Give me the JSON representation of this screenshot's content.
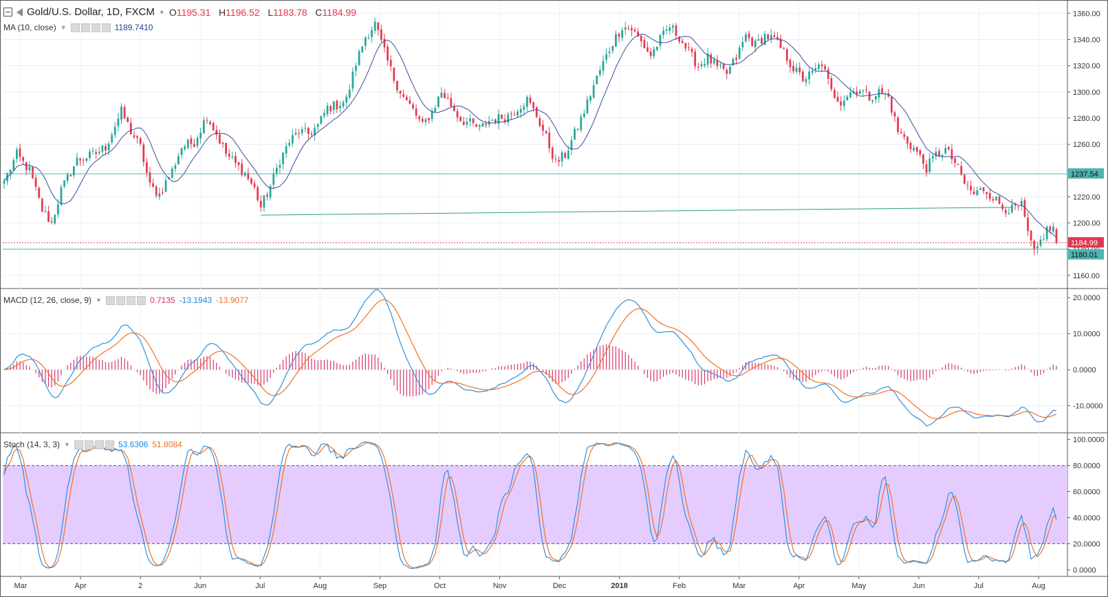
{
  "header": {
    "symbol_title": "Gold/U.S. Dollar, 1D, FXCM",
    "open_label": "O",
    "open": "1195.31",
    "high_label": "H",
    "high": "1196.52",
    "low_label": "L",
    "low": "1183.78",
    "close_label": "C",
    "close": "1184.99"
  },
  "indicators": {
    "ma": {
      "label": "MA (10, close)",
      "value": "1189.7410"
    },
    "macd": {
      "label": "MACD (12, 26, close, 9)",
      "hist": "0.7135",
      "macd": "-13.1943",
      "signal": "-13.9077"
    },
    "stoch": {
      "label": "Stoch (14, 3, 3)",
      "k": "53.6306",
      "d": "51.8084"
    }
  },
  "chart_data": [
    {
      "type": "candlestick",
      "panel": "price",
      "title": "Gold/U.S. Dollar, 1D, FXCM",
      "x_labels": [
        "Mar",
        "Apr",
        "2",
        "Jun",
        "Jul",
        "Aug",
        "Sep",
        "Oct",
        "Nov",
        "Dec",
        "2018",
        "Feb",
        "Mar",
        "Apr",
        "May",
        "Jun",
        "Jul",
        "Aug"
      ],
      "y_ticks": [
        "1360.00",
        "1340.00",
        "1320.00",
        "1300.00",
        "1280.00",
        "1260.00",
        "1240.00",
        "1220.00",
        "1200.00",
        "1180.00",
        "1160.00"
      ],
      "ylim": [
        1150,
        1367
      ],
      "close_anchors": [
        [
          0,
          1232
        ],
        [
          4,
          1252
        ],
        [
          8,
          1240
        ],
        [
          12,
          1210
        ],
        [
          15,
          1200
        ],
        [
          18,
          1225
        ],
        [
          23,
          1248
        ],
        [
          28,
          1252
        ],
        [
          32,
          1258
        ],
        [
          37,
          1285
        ],
        [
          40,
          1270
        ],
        [
          43,
          1258
        ],
        [
          46,
          1228
        ],
        [
          49,
          1222
        ],
        [
          53,
          1240
        ],
        [
          56,
          1258
        ],
        [
          60,
          1262
        ],
        [
          64,
          1282
        ],
        [
          67,
          1268
        ],
        [
          70,
          1253
        ],
        [
          73,
          1245
        ],
        [
          76,
          1238
        ],
        [
          79,
          1226
        ],
        [
          81,
          1212
        ],
        [
          84,
          1228
        ],
        [
          87,
          1248
        ],
        [
          90,
          1262
        ],
        [
          93,
          1270
        ],
        [
          96,
          1268
        ],
        [
          99,
          1274
        ],
        [
          102,
          1288
        ],
        [
          105,
          1290
        ],
        [
          108,
          1294
        ],
        [
          111,
          1322
        ],
        [
          114,
          1342
        ],
        [
          117,
          1352
        ],
        [
          120,
          1330
        ],
        [
          123,
          1310
        ],
        [
          126,
          1296
        ],
        [
          129,
          1286
        ],
        [
          132,
          1274
        ],
        [
          135,
          1285
        ],
        [
          138,
          1300
        ],
        [
          141,
          1290
        ],
        [
          144,
          1279
        ],
        [
          147,
          1276
        ],
        [
          150,
          1272
        ],
        [
          153,
          1278
        ],
        [
          156,
          1280
        ],
        [
          159,
          1282
        ],
        [
          162,
          1288
        ],
        [
          165,
          1294
        ],
        [
          168,
          1282
        ],
        [
          171,
          1265
        ],
        [
          174,
          1246
        ],
        [
          177,
          1252
        ],
        [
          180,
          1268
        ],
        [
          183,
          1285
        ],
        [
          186,
          1305
        ],
        [
          189,
          1322
        ],
        [
          192,
          1338
        ],
        [
          195,
          1350
        ],
        [
          198,
          1348
        ],
        [
          201,
          1338
        ],
        [
          204,
          1328
        ],
        [
          207,
          1340
        ],
        [
          210,
          1350
        ],
        [
          213,
          1342
        ],
        [
          216,
          1330
        ],
        [
          219,
          1320
        ],
        [
          222,
          1326
        ],
        [
          225,
          1318
        ],
        [
          228,
          1314
        ],
        [
          231,
          1326
        ],
        [
          234,
          1343
        ],
        [
          237,
          1336
        ],
        [
          240,
          1343
        ],
        [
          243,
          1340
        ],
        [
          246,
          1330
        ],
        [
          249,
          1318
        ],
        [
          252,
          1310
        ],
        [
          255,
          1314
        ],
        [
          258,
          1322
        ],
        [
          261,
          1300
        ],
        [
          264,
          1293
        ],
        [
          267,
          1300
        ],
        [
          270,
          1302
        ],
        [
          273,
          1296
        ],
        [
          276,
          1300
        ],
        [
          279,
          1296
        ],
        [
          282,
          1270
        ],
        [
          285,
          1262
        ],
        [
          288,
          1254
        ],
        [
          291,
          1242
        ],
        [
          294,
          1252
        ],
        [
          297,
          1256
        ],
        [
          300,
          1246
        ],
        [
          303,
          1230
        ],
        [
          306,
          1222
        ],
        [
          309,
          1226
        ],
        [
          312,
          1220
        ],
        [
          315,
          1212
        ],
        [
          318,
          1210
        ],
        [
          321,
          1213
        ],
        [
          323,
          1192
        ],
        [
          325,
          1176
        ],
        [
          327,
          1186
        ],
        [
          329,
          1195
        ],
        [
          331,
          1196
        ],
        [
          332,
          1185
        ]
      ],
      "volatility": 5,
      "ma_period": 10,
      "levels": [
        {
          "name": "resistance",
          "value": 1237.54,
          "label": "1237.54",
          "color": "#4fb3b0"
        },
        {
          "name": "support",
          "value": 1180.01,
          "label": "1180.01",
          "color": "#4fb3b0"
        },
        {
          "name": "last-price",
          "value": 1184.99,
          "label": "1184.99",
          "color": "#e0364f"
        }
      ],
      "trendline": {
        "from": [
          81,
          1206
        ],
        "to": [
          318,
          1212
        ]
      },
      "colors": {
        "up": "#26a69a",
        "down": "#e5394f",
        "ma": "#3a4a9c"
      }
    },
    {
      "type": "line",
      "panel": "macd",
      "title": "MACD (12, 26, close, 9)",
      "y_ticks": [
        "20.0000",
        "10.0000",
        "0.0000",
        "-10.0000"
      ],
      "ylim": [
        -16,
        21
      ],
      "series": [
        {
          "name": "MACD",
          "color": "#2b8fe0"
        },
        {
          "name": "Signal",
          "color": "#f07020"
        },
        {
          "name": "Histogram",
          "color": "#d6336c"
        }
      ]
    },
    {
      "type": "line",
      "panel": "stoch",
      "title": "Stoch (14, 3, 3)",
      "y_ticks": [
        "100.0000",
        "80.0000",
        "60.0000",
        "40.0000",
        "20.0000",
        "0.0000"
      ],
      "ylim": [
        -3,
        103
      ],
      "bands": [
        20,
        80
      ],
      "band_color": "#e5ccff",
      "series": [
        {
          "name": "%K",
          "color": "#2b8fe0"
        },
        {
          "name": "%D",
          "color": "#f07020"
        }
      ]
    }
  ]
}
